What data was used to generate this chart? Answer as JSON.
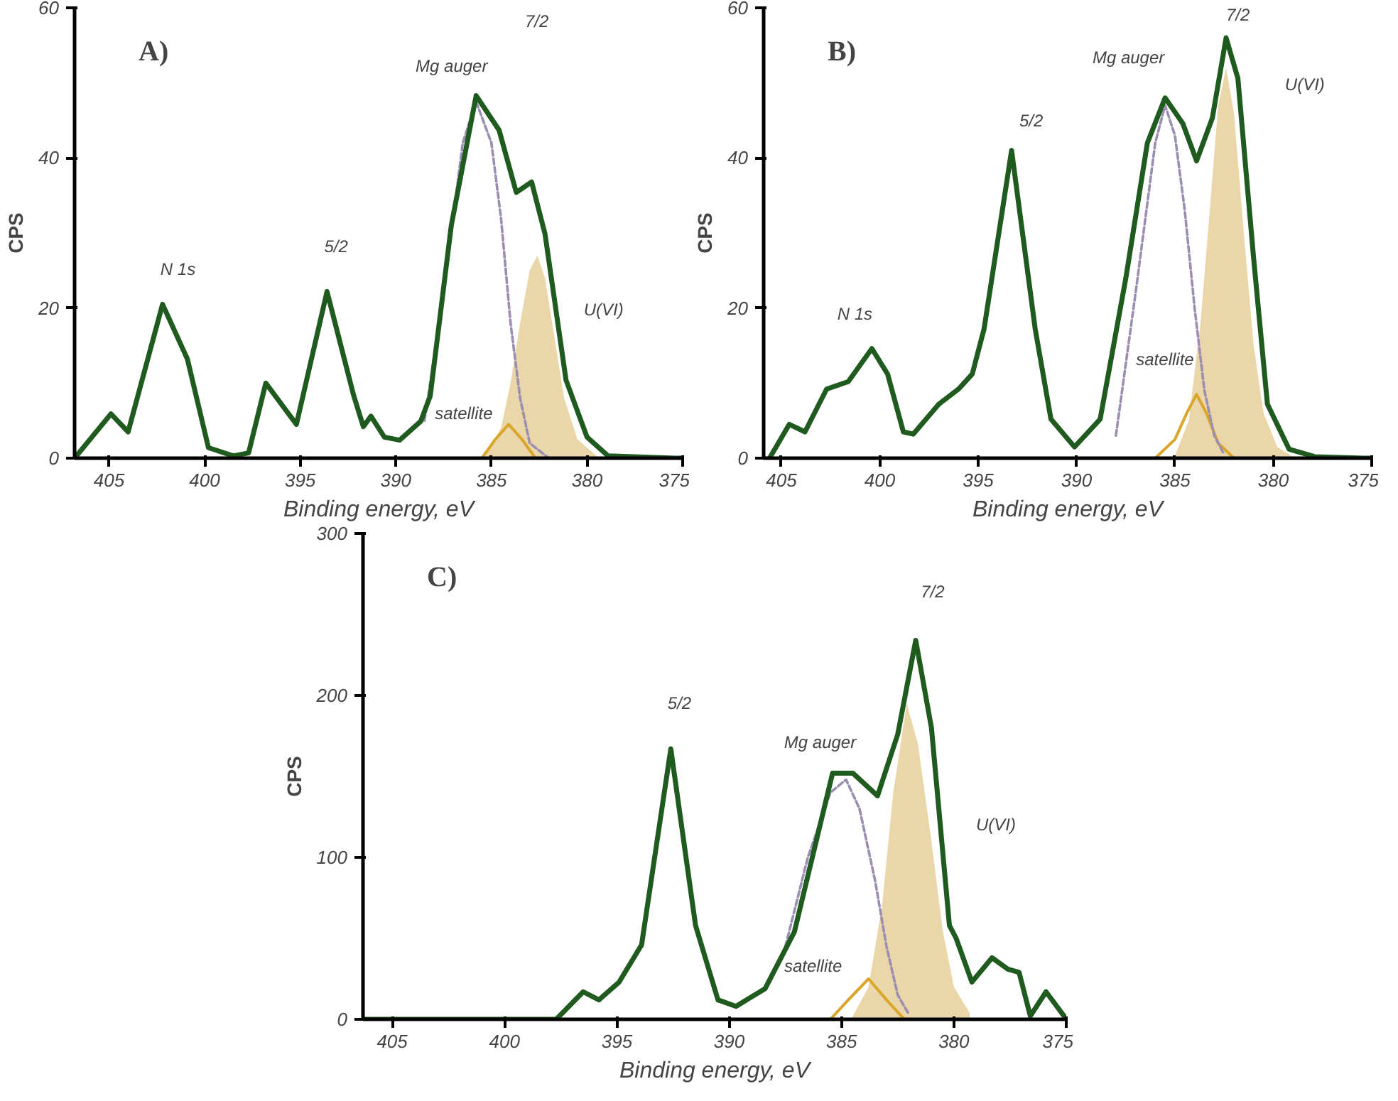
{
  "chart_data": [
    {
      "type": "line",
      "title": "A)",
      "xlabel": "Binding energy, eV",
      "ylabel": "CPS",
      "xlim": [
        406.8,
        375
      ],
      "ylim": [
        0,
        60
      ],
      "xticks": [
        405,
        400,
        395,
        390,
        385,
        380,
        375
      ],
      "yticks": [
        0,
        20,
        40,
        60
      ],
      "grid": false,
      "series": [
        {
          "type": "area",
          "color": "#e8cf9a",
          "x": [
            385.3,
            384.5,
            384,
            383.5,
            383,
            382.6,
            382.2,
            381.7,
            381.2,
            380.5,
            379.5
          ],
          "values": [
            0.5,
            4,
            10,
            18,
            25,
            27,
            24,
            16,
            8,
            2.5,
            0.3
          ]
        },
        {
          "type": "line",
          "color": "#d9a62a",
          "x": [
            385.5,
            384.8,
            384.1,
            383.4,
            382.7
          ],
          "values": [
            0,
            2.5,
            4.5,
            2.5,
            0
          ]
        },
        {
          "type": "line",
          "color": "#9a8fb0",
          "line_style": "dashed",
          "x": [
            388.5,
            387.5,
            386.5,
            385.8,
            385,
            384.5,
            384,
            383.5,
            383,
            382
          ],
          "values": [
            5,
            22,
            42,
            47.5,
            42,
            32,
            18,
            8,
            2,
            0
          ]
        },
        {
          "color": "#1f5a1f",
          "x": [
            406.8,
            404.9,
            404.0,
            402.2,
            400.9,
            399.8,
            398.5,
            397.7,
            396.8,
            395.2,
            393.6,
            392.2,
            391.7,
            391.3,
            390.6,
            389.8,
            388.7,
            388.2,
            387.1,
            385.8,
            384.6,
            383.7,
            382.9,
            382.2,
            381.1,
            380.0,
            378.9,
            375.4,
            375
          ],
          "values": [
            0,
            5.9,
            3.5,
            20.5,
            13.2,
            1.4,
            0.3,
            0.7,
            10,
            4.5,
            22.2,
            8.3,
            4.2,
            5.6,
            2.8,
            2.4,
            4.9,
            8.3,
            31,
            48.3,
            43.7,
            35.4,
            36.8,
            29.9,
            10.4,
            2.8,
            0.3,
            0,
            0
          ]
        }
      ],
      "annotations": [
        "N 1s",
        "5/2",
        "Mg auger",
        "7/2",
        "U(VI)",
        "satellite"
      ]
    },
    {
      "type": "line",
      "title": "B)",
      "xlabel": "Binding energy, eV",
      "ylabel": "CPS",
      "xlim": [
        405.9,
        375
      ],
      "ylim": [
        0,
        60
      ],
      "xticks": [
        405,
        400,
        395,
        390,
        385,
        380,
        375
      ],
      "yticks": [
        0,
        20,
        40,
        60
      ],
      "grid": false,
      "series": [
        {
          "type": "area",
          "color": "#e8cf9a",
          "x": [
            385,
            384.3,
            383.7,
            383.2,
            382.8,
            382.4,
            382,
            381.5,
            381,
            380.5,
            379.8,
            379
          ],
          "values": [
            0.3,
            5,
            18,
            34,
            47,
            52,
            46,
            30,
            15,
            6,
            1.5,
            0.2
          ]
        },
        {
          "type": "line",
          "color": "#d9a62a",
          "x": [
            386,
            385,
            384.4,
            383.9,
            383.4,
            382.8,
            382
          ],
          "values": [
            0,
            2.5,
            6,
            8.5,
            6,
            2,
            0
          ]
        },
        {
          "type": "line",
          "color": "#9a8fb0",
          "line_style": "dashed",
          "x": [
            388,
            387,
            386,
            385.5,
            385,
            384.5,
            384,
            383.5,
            383,
            382.5
          ],
          "values": [
            3,
            22,
            42,
            47,
            43,
            33,
            20,
            9,
            3,
            0.5
          ]
        },
        {
          "color": "#1f5a1f",
          "x": [
            405.6,
            404.6,
            403.8,
            402.7,
            401.6,
            400.4,
            399.6,
            398.8,
            398.3,
            397.0,
            396.0,
            395.3,
            394.7,
            393.3,
            392.1,
            391.3,
            390.1,
            388.8,
            387.5,
            386.4,
            385.5,
            384.6,
            383.9,
            383.1,
            382.4,
            381.8,
            381.0,
            380.3,
            379.2,
            377.9,
            375.4,
            375
          ],
          "values": [
            0,
            4.5,
            3.5,
            9.2,
            10.2,
            14.6,
            11.2,
            3.5,
            3.2,
            7.2,
            9.2,
            11.2,
            17.2,
            41,
            17.2,
            5.2,
            1.5,
            5.2,
            23.9,
            42,
            48,
            44.6,
            39.6,
            45.3,
            56,
            50.6,
            26.6,
            7.2,
            1.2,
            0.2,
            0,
            0
          ]
        }
      ],
      "annotations": [
        "N 1s",
        "5/2",
        "Mg auger",
        "7/2",
        "U(VI)",
        "satellite"
      ]
    },
    {
      "type": "line",
      "title": "C)",
      "xlabel": "Binding energy, eV",
      "ylabel": "CPS",
      "xlim": [
        406.3,
        375
      ],
      "ylim": [
        0,
        300
      ],
      "xticks": [
        405,
        400,
        395,
        390,
        385,
        380,
        375
      ],
      "yticks": [
        0,
        100,
        200,
        300
      ],
      "grid": false,
      "series": [
        {
          "type": "area",
          "color": "#e8cf9a",
          "x": [
            384.5,
            383.8,
            383.2,
            382.7,
            382.1,
            381.6,
            381,
            380.5,
            380,
            379.3
          ],
          "values": [
            2,
            20,
            70,
            140,
            195,
            170,
            110,
            55,
            20,
            4
          ]
        },
        {
          "type": "line",
          "color": "#d9a62a",
          "x": [
            385.5,
            384.7,
            383.8,
            383,
            382.2
          ],
          "values": [
            0,
            12,
            25,
            12,
            0
          ]
        },
        {
          "type": "line",
          "color": "#9a8fb0",
          "line_style": "dashed",
          "x": [
            387.5,
            386.5,
            385.5,
            384.8,
            384.2,
            383.5,
            383,
            382.5,
            382
          ],
          "values": [
            45,
            100,
            140,
            148,
            130,
            85,
            45,
            15,
            3
          ]
        },
        {
          "color": "#1f5a1f",
          "x": [
            406.3,
            397.7,
            396.5,
            395.8,
            394.9,
            393.9,
            392.6,
            391.5,
            390.5,
            389.7,
            388.4,
            387.1,
            385.4,
            384.5,
            383.4,
            382.5,
            381.7,
            381.0,
            380.2,
            379.9,
            379.2,
            378.3,
            377.6,
            377.1,
            376.6,
            375.9,
            375.1
          ],
          "values": [
            0,
            0,
            17,
            12,
            23,
            46,
            167,
            58,
            12,
            8,
            19,
            54,
            152,
            152,
            138,
            176,
            234,
            180,
            58,
            50,
            23,
            38,
            31,
            29,
            2,
            17,
            2
          ]
        }
      ],
      "annotations": [
        "5/2",
        "Mg auger",
        "7/2",
        "U(VI)",
        "satellite"
      ]
    }
  ]
}
